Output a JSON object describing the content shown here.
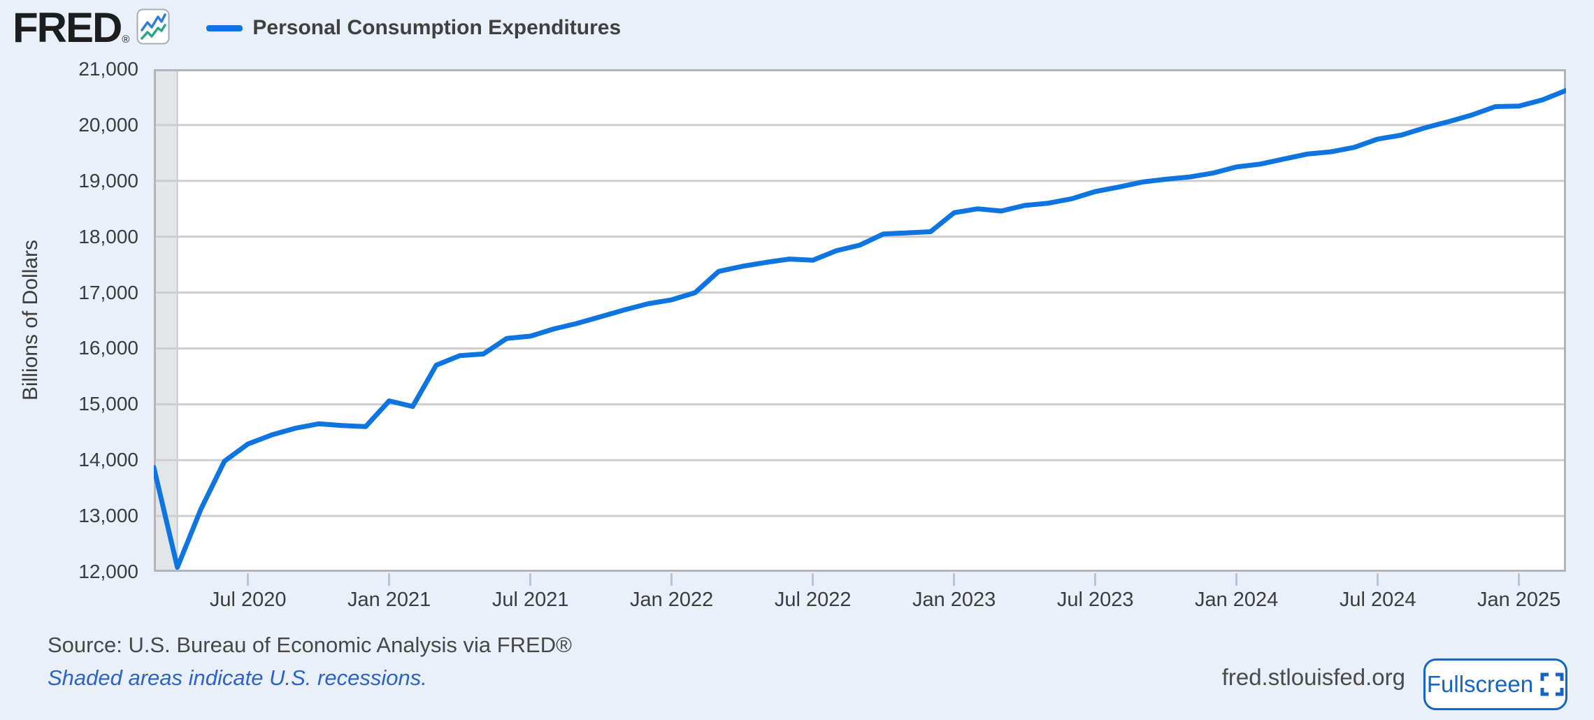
{
  "page": {
    "background": "#e9f0fa"
  },
  "header": {
    "logo_text": "FRED",
    "registered_mark": "®"
  },
  "legend": {
    "series_label": "Personal Consumption Expenditures",
    "color": "#0d74e0"
  },
  "chart_data": {
    "type": "line",
    "series_name": "Personal Consumption Expenditures",
    "ylabel": "Billions of Dollars",
    "ylim": [
      12000,
      21000
    ],
    "grid": true,
    "legend_position": "top-left",
    "line_color": "#0d74e0",
    "plot_background": "#ffffff",
    "grid_color": "#cdcdcd",
    "plot_border_color": "#b3b5b8",
    "recession_band_color": "#e4e5e8",
    "months": [
      "2020-03",
      "2020-04",
      "2020-05",
      "2020-06",
      "2020-07",
      "2020-08",
      "2020-09",
      "2020-10",
      "2020-11",
      "2020-12",
      "2021-01",
      "2021-02",
      "2021-03",
      "2021-04",
      "2021-05",
      "2021-06",
      "2021-07",
      "2021-08",
      "2021-09",
      "2021-10",
      "2021-11",
      "2021-12",
      "2022-01",
      "2022-02",
      "2022-03",
      "2022-04",
      "2022-05",
      "2022-06",
      "2022-07",
      "2022-08",
      "2022-09",
      "2022-10",
      "2022-11",
      "2022-12",
      "2023-01",
      "2023-02",
      "2023-03",
      "2023-04",
      "2023-05",
      "2023-06",
      "2023-07",
      "2023-08",
      "2023-09",
      "2023-10",
      "2023-11",
      "2023-12",
      "2024-01",
      "2024-02",
      "2024-03",
      "2024-04",
      "2024-05",
      "2024-06",
      "2024-07",
      "2024-08",
      "2024-09",
      "2024-10",
      "2024-11",
      "2024-12",
      "2025-01",
      "2025-02",
      "2025-03"
    ],
    "values": [
      13870,
      12080,
      13120,
      13980,
      14290,
      14450,
      14570,
      14650,
      14620,
      14600,
      15060,
      14960,
      15700,
      15870,
      15900,
      16180,
      16220,
      16350,
      16450,
      16570,
      16690,
      16800,
      16870,
      17000,
      17380,
      17470,
      17540,
      17600,
      17580,
      17750,
      17850,
      18050,
      18070,
      18090,
      18430,
      18500,
      18460,
      18560,
      18600,
      18680,
      18810,
      18890,
      18980,
      19030,
      19070,
      19140,
      19250,
      19300,
      19390,
      19480,
      19520,
      19600,
      19750,
      19820,
      19950,
      20060,
      20180,
      20330,
      20340,
      20450,
      20620
    ],
    "y_ticks": [
      {
        "value": 21000,
        "label": "21,000"
      },
      {
        "value": 20000,
        "label": "20,000"
      },
      {
        "value": 19000,
        "label": "19,000"
      },
      {
        "value": 18000,
        "label": "18,000"
      },
      {
        "value": 17000,
        "label": "17,000"
      },
      {
        "value": 16000,
        "label": "16,000"
      },
      {
        "value": 15000,
        "label": "15,000"
      },
      {
        "value": 14000,
        "label": "14,000"
      },
      {
        "value": 13000,
        "label": "13,000"
      },
      {
        "value": 12000,
        "label": "12,000"
      }
    ],
    "x_ticks": [
      {
        "month_index": 4,
        "label": "Jul 2020"
      },
      {
        "month_index": 10,
        "label": "Jan 2021"
      },
      {
        "month_index": 16,
        "label": "Jul 2021"
      },
      {
        "month_index": 22,
        "label": "Jan 2022"
      },
      {
        "month_index": 28,
        "label": "Jul 2022"
      },
      {
        "month_index": 34,
        "label": "Jan 2023"
      },
      {
        "month_index": 40,
        "label": "Jul 2023"
      },
      {
        "month_index": 46,
        "label": "Jan 2024"
      },
      {
        "month_index": 52,
        "label": "Jul 2024"
      },
      {
        "month_index": 58,
        "label": "Jan 2025"
      }
    ],
    "recession_bands": [
      {
        "start_month_index": 0,
        "end_month_index": 1
      }
    ]
  },
  "footer": {
    "source": "Source: U.S. Bureau of Economic Analysis via FRED®",
    "recession_note": "Shaded areas indicate U.S. recessions.",
    "site": "fred.stlouisfed.org",
    "fullscreen_label": "Fullscreen"
  }
}
